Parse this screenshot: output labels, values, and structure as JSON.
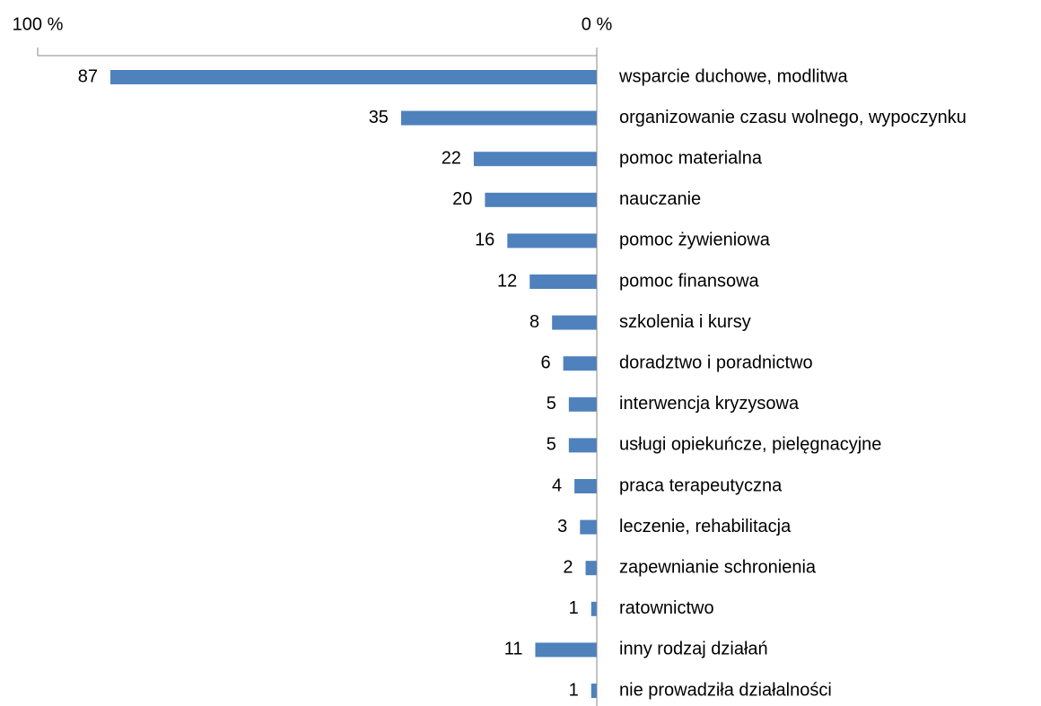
{
  "chart_data": {
    "type": "hbar_reversed",
    "categories": [
      "wsparcie duchowe, modlitwa",
      "organizowanie czasu wolnego, wypoczynku",
      "pomoc materialna",
      "nauczanie",
      "pomoc żywieniowa",
      "pomoc finansowa",
      "szkolenia i kursy",
      "doradztwo i poradnictwo",
      "interwencja kryzysowa",
      "usługi opiekuńcze, pielęgnacyjne",
      "praca terapeutyczna",
      "leczenie, rehabilitacja",
      "zapewnianie schronienia",
      "ratownictwo",
      "inny rodzaj działań",
      "nie prowadziła działalności"
    ],
    "values": [
      87,
      35,
      22,
      20,
      16,
      12,
      8,
      6,
      5,
      5,
      4,
      3,
      2,
      1,
      11,
      1
    ],
    "color": "#4f81bd",
    "xlim": [
      0,
      100
    ],
    "xticks": [
      {
        "value": 100,
        "label": "100 %"
      },
      {
        "value": 0,
        "label": "0 %"
      }
    ]
  }
}
